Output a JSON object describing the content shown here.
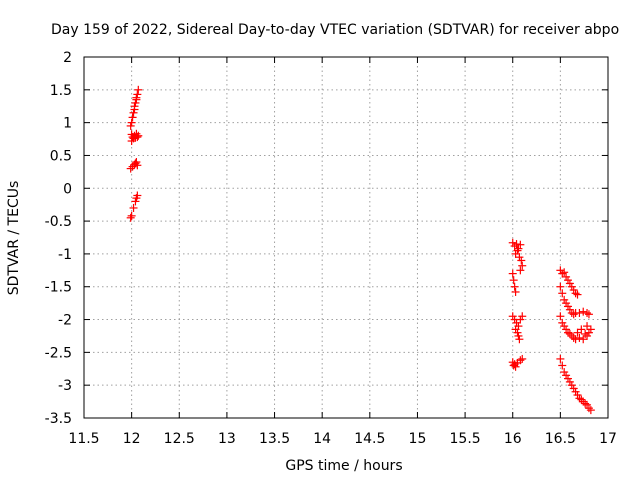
{
  "chart_data": {
    "type": "scatter",
    "title": "Day 159 of 2022, Sidereal Day-to-day VTEC variation (SDTVAR) for receiver abpo",
    "xlabel": "GPS time / hours",
    "ylabel": "SDTVAR / TECUs",
    "xlim": [
      11.5,
      17
    ],
    "ylim": [
      -3.5,
      2
    ],
    "xticks": [
      "11.5",
      "12",
      "12.5",
      "13",
      "13.5",
      "14",
      "14.5",
      "15",
      "15.5",
      "16",
      "16.5",
      "17"
    ],
    "yticks": [
      "2",
      "1.5",
      "1",
      "0.5",
      "0",
      "-0.5",
      "-1",
      "-1.5",
      "-2",
      "-2.5",
      "-3",
      "-3.5"
    ],
    "grid": true,
    "marker": "+",
    "series": [
      {
        "name": "SDTVAR",
        "color": "#ff0000",
        "points": [
          [
            12.0,
            1.0
          ],
          [
            12.01,
            1.08
          ],
          [
            12.02,
            1.15
          ],
          [
            12.03,
            1.25
          ],
          [
            12.04,
            1.3
          ],
          [
            12.05,
            1.38
          ],
          [
            12.06,
            1.43
          ],
          [
            12.07,
            1.5
          ],
          [
            12.05,
            1.35
          ],
          [
            12.03,
            1.2
          ],
          [
            11.99,
            0.95
          ],
          [
            12.0,
            0.82
          ],
          [
            12.01,
            0.78
          ],
          [
            12.02,
            0.76
          ],
          [
            12.03,
            0.8
          ],
          [
            12.04,
            0.77
          ],
          [
            12.05,
            0.83
          ],
          [
            12.06,
            0.78
          ],
          [
            12.07,
            0.8
          ],
          [
            12.0,
            0.72
          ],
          [
            11.99,
            0.3
          ],
          [
            12.01,
            0.33
          ],
          [
            12.03,
            0.36
          ],
          [
            12.05,
            0.4
          ],
          [
            12.06,
            0.35
          ],
          [
            12.04,
            0.38
          ],
          [
            11.99,
            -0.45
          ],
          [
            12.0,
            -0.42
          ],
          [
            12.02,
            -0.3
          ],
          [
            12.04,
            -0.2
          ],
          [
            12.05,
            -0.15
          ],
          [
            12.06,
            -0.11
          ],
          [
            16.0,
            -0.83
          ],
          [
            16.02,
            -0.88
          ],
          [
            16.04,
            -0.85
          ],
          [
            16.06,
            -0.92
          ],
          [
            16.08,
            -0.86
          ],
          [
            16.03,
            -1.0
          ],
          [
            16.05,
            -0.95
          ],
          [
            16.07,
            -1.05
          ],
          [
            16.09,
            -1.1
          ],
          [
            16.1,
            -1.18
          ],
          [
            16.08,
            -1.25
          ],
          [
            16.0,
            -1.3
          ],
          [
            16.01,
            -1.4
          ],
          [
            16.02,
            -1.5
          ],
          [
            16.03,
            -1.58
          ],
          [
            16.0,
            -1.95
          ],
          [
            16.02,
            -2.0
          ],
          [
            16.04,
            -2.05
          ],
          [
            16.06,
            -2.1
          ],
          [
            16.08,
            -2.0
          ],
          [
            16.1,
            -1.95
          ],
          [
            16.03,
            -2.15
          ],
          [
            16.05,
            -2.2
          ],
          [
            16.07,
            -2.3
          ],
          [
            16.06,
            -2.25
          ],
          [
            16.0,
            -2.65
          ],
          [
            16.01,
            -2.7
          ],
          [
            16.02,
            -2.68
          ],
          [
            16.03,
            -2.72
          ],
          [
            16.05,
            -2.66
          ],
          [
            16.08,
            -2.62
          ],
          [
            16.1,
            -2.6
          ],
          [
            16.5,
            -1.25
          ],
          [
            16.52,
            -1.3
          ],
          [
            16.54,
            -1.28
          ],
          [
            16.56,
            -1.35
          ],
          [
            16.58,
            -1.4
          ],
          [
            16.6,
            -1.45
          ],
          [
            16.62,
            -1.5
          ],
          [
            16.64,
            -1.55
          ],
          [
            16.66,
            -1.6
          ],
          [
            16.68,
            -1.62
          ],
          [
            16.5,
            -1.5
          ],
          [
            16.52,
            -1.6
          ],
          [
            16.54,
            -1.7
          ],
          [
            16.56,
            -1.75
          ],
          [
            16.58,
            -1.8
          ],
          [
            16.6,
            -1.85
          ],
          [
            16.62,
            -1.9
          ],
          [
            16.64,
            -1.92
          ],
          [
            16.66,
            -1.9
          ],
          [
            16.7,
            -1.9
          ],
          [
            16.74,
            -1.88
          ],
          [
            16.78,
            -1.9
          ],
          [
            16.8,
            -1.92
          ],
          [
            16.5,
            -1.95
          ],
          [
            16.52,
            -2.05
          ],
          [
            16.54,
            -2.1
          ],
          [
            16.56,
            -2.15
          ],
          [
            16.58,
            -2.2
          ],
          [
            16.6,
            -2.22
          ],
          [
            16.62,
            -2.25
          ],
          [
            16.64,
            -2.28
          ],
          [
            16.66,
            -2.3
          ],
          [
            16.7,
            -2.28
          ],
          [
            16.74,
            -2.3
          ],
          [
            16.78,
            -2.25
          ],
          [
            16.8,
            -2.2
          ],
          [
            16.82,
            -2.15
          ],
          [
            16.78,
            -2.1
          ],
          [
            16.72,
            -2.15
          ],
          [
            16.68,
            -2.2
          ],
          [
            16.76,
            -2.22
          ],
          [
            16.5,
            -2.6
          ],
          [
            16.52,
            -2.7
          ],
          [
            16.54,
            -2.8
          ],
          [
            16.56,
            -2.85
          ],
          [
            16.58,
            -2.9
          ],
          [
            16.6,
            -2.95
          ],
          [
            16.62,
            -3.0
          ],
          [
            16.64,
            -3.05
          ],
          [
            16.66,
            -3.1
          ],
          [
            16.68,
            -3.15
          ],
          [
            16.7,
            -3.2
          ],
          [
            16.72,
            -3.22
          ],
          [
            16.74,
            -3.25
          ],
          [
            16.76,
            -3.28
          ],
          [
            16.78,
            -3.3
          ],
          [
            16.8,
            -3.35
          ],
          [
            16.82,
            -3.38
          ]
        ]
      }
    ]
  }
}
